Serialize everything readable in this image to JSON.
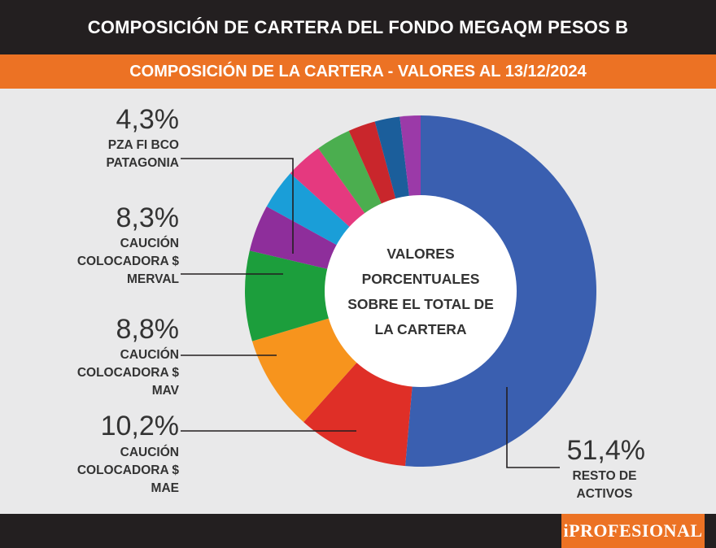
{
  "header": {
    "title": "COMPOSICIÓN DE CARTERA DEL FONDO MEGAQM PESOS B",
    "subtitle": "COMPOSICIÓN DE LA CARTERA - VALORES AL 13/12/2024"
  },
  "brand": {
    "name": "iPROFESIONAL"
  },
  "chart_data": {
    "type": "pie",
    "donut": true,
    "center_text": [
      "VALORES",
      "PORCENTUALES",
      "SOBRE EL TOTAL DE",
      "LA CARTERA"
    ],
    "slices": [
      {
        "key": "resto",
        "value": 51.4,
        "color": "#3a5fb0",
        "pct_label": "51,4%",
        "label_lines": [
          "RESTO DE",
          "ACTIVOS"
        ]
      },
      {
        "key": "mae",
        "value": 10.2,
        "color": "#df2f27",
        "pct_label": "10,2%",
        "label_lines": [
          "CAUCIÓN",
          "COLOCADORA $",
          "MAE"
        ]
      },
      {
        "key": "mav",
        "value": 8.8,
        "color": "#f7941d",
        "pct_label": "8,8%",
        "label_lines": [
          "CAUCIÓN",
          "COLOCADORA $",
          "MAV"
        ]
      },
      {
        "key": "merval",
        "value": 8.3,
        "color": "#1c9e3c",
        "pct_label": "8,3%",
        "label_lines": [
          "CAUCIÓN",
          "COLOCADORA $",
          "MERVAL"
        ]
      },
      {
        "key": "patagonia",
        "value": 4.3,
        "color": "#8e2e9b",
        "pct_label": "4,3%",
        "label_lines": [
          "PZA FI BCO",
          "PATAGONIA"
        ]
      },
      {
        "key": "s6",
        "value": 3.7,
        "color": "#1a9ed8"
      },
      {
        "key": "s7",
        "value": 3.4,
        "color": "#e5397f"
      },
      {
        "key": "s8",
        "value": 3.2,
        "color": "#4bae4f"
      },
      {
        "key": "s9",
        "value": 2.5,
        "color": "#c9262c"
      },
      {
        "key": "s10",
        "value": 2.3,
        "color": "#1b5e9b"
      },
      {
        "key": "s11",
        "value": 1.9,
        "color": "#9b3aa8"
      }
    ]
  }
}
